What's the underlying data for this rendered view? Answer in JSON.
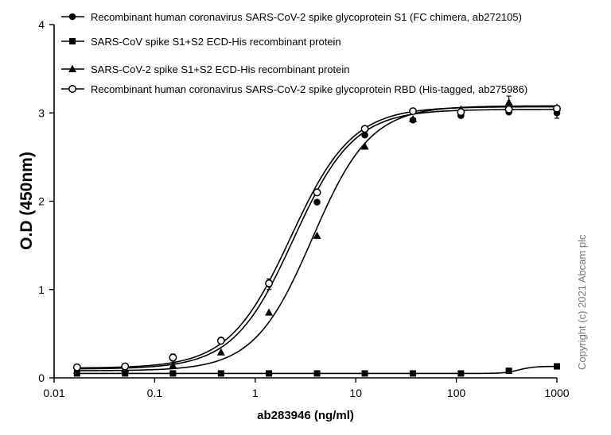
{
  "chart_data": {
    "type": "scatter",
    "x_scale": "log",
    "xlim": [
      0.01,
      1000
    ],
    "ylim": [
      0,
      4
    ],
    "xlabel": "ab283946 (ng/ml)",
    "ylabel": "O.D (450nm)",
    "x_ticks": [
      "0.01",
      "0.1",
      "1",
      "10",
      "100",
      "1000"
    ],
    "y_ticks": [
      "0",
      "1",
      "2",
      "3",
      "4"
    ],
    "legend_position": "top",
    "copyright": "Copyright (c) 2021 Abcam plc",
    "series": [
      {
        "name": "Recombinant human coronavirus SARS-CoV-2 spike glycoprotein S1 (FC chimera, ab272105)",
        "marker": "filled-circle",
        "x": [
          0.0169,
          0.0508,
          0.152,
          0.457,
          1.37,
          4.12,
          12.3,
          37.0,
          111,
          333,
          1000
        ],
        "y": [
          0.11,
          0.12,
          0.22,
          0.43,
          1.06,
          1.99,
          2.75,
          2.92,
          2.97,
          3.01,
          3.0
        ],
        "fit": {
          "bottom": 0.1,
          "top": 3.04,
          "ec50": 2.4,
          "hill": 1.45
        }
      },
      {
        "name": "SARS-CoV spike S1+S2 ECD-His recombinant protein",
        "marker": "filled-square",
        "x": [
          0.0169,
          0.0508,
          0.152,
          0.457,
          1.37,
          4.12,
          12.3,
          37.0,
          111,
          333,
          1000
        ],
        "y": [
          0.05,
          0.05,
          0.05,
          0.05,
          0.05,
          0.05,
          0.05,
          0.05,
          0.05,
          0.08,
          0.13
        ],
        "fit": {
          "bottom": 0.05,
          "top": 0.13,
          "ec50": 420,
          "hill": 6
        }
      },
      {
        "name": "SARS-CoV-2 spike S1+S2 ECD-His recombinant protein",
        "marker": "filled-triangle",
        "x": [
          0.0169,
          0.0508,
          0.152,
          0.457,
          1.37,
          4.12,
          12.3,
          37.0,
          111,
          333,
          1000
        ],
        "y": [
          0.08,
          0.1,
          0.14,
          0.29,
          0.74,
          1.61,
          2.62,
          2.93,
          3.04,
          3.12,
          3.06
        ],
        "fit": {
          "bottom": 0.08,
          "top": 3.08,
          "ec50": 3.7,
          "hill": 1.5
        }
      },
      {
        "name": "Recombinant human coronavirus SARS-CoV-2 spike glycoprotein RBD (His-tagged, ab275986)",
        "marker": "open-circle",
        "x": [
          0.0169,
          0.0508,
          0.152,
          0.457,
          1.37,
          4.12,
          12.3,
          37.0,
          111,
          333,
          1000
        ],
        "y": [
          0.12,
          0.13,
          0.23,
          0.42,
          1.07,
          2.1,
          2.82,
          3.02,
          3.01,
          3.04,
          3.05
        ],
        "fit": {
          "bottom": 0.11,
          "top": 3.07,
          "ec50": 2.25,
          "hill": 1.42
        }
      }
    ]
  }
}
